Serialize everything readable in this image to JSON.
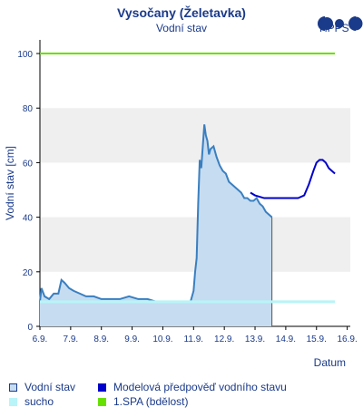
{
  "header": {
    "title": "Vysočany (Želetavka)",
    "subtitle": "Vodní stav",
    "logo_text": "HPPS"
  },
  "colors": {
    "accent": "#1a3a8a",
    "observed_fill": "#c6dcf0",
    "observed_line": "#3a7fc0",
    "forecast": "#0000cc",
    "drought": "#b8f4f8",
    "spa": "#66e000",
    "band": "#efefef"
  },
  "legend": {
    "items": [
      {
        "label": "Vodní stav",
        "icon": "filled-square-icon"
      },
      {
        "label": "Modelová předpověď vodního stavu",
        "icon": "blue-square-icon"
      },
      {
        "label": "sucho",
        "icon": "cyan-square-icon"
      },
      {
        "label": "1.SPA (bdělost)",
        "icon": "green-square-icon"
      }
    ]
  },
  "chart_data": {
    "type": "area",
    "title": "Vysočany (Želetavka)",
    "subtitle": "Vodní stav",
    "xlabel": "Datum",
    "ylabel": "Vodní stav [cm]",
    "x_ticks": [
      "6.9.",
      "7.9.",
      "8.9.",
      "9.9.",
      "10.9.",
      "11.9.",
      "12.9.",
      "13.9.",
      "14.9.",
      "15.9.",
      "16.9."
    ],
    "xlim": [
      0,
      10.1
    ],
    "x_unit": "days since 6.9.",
    "ylim": [
      0,
      105
    ],
    "y_ticks": [
      0,
      20,
      40,
      60,
      80,
      100
    ],
    "grid": "horizontal bands",
    "series": [
      {
        "name": "Vodní stav",
        "type": "area",
        "points": [
          [
            0,
            9
          ],
          [
            0.05,
            14
          ],
          [
            0.15,
            11
          ],
          [
            0.3,
            10
          ],
          [
            0.45,
            12
          ],
          [
            0.6,
            12
          ],
          [
            0.7,
            17
          ],
          [
            0.8,
            16
          ],
          [
            0.95,
            14
          ],
          [
            1.1,
            13
          ],
          [
            1.3,
            12
          ],
          [
            1.5,
            11
          ],
          [
            1.75,
            11
          ],
          [
            2.0,
            10
          ],
          [
            2.3,
            10
          ],
          [
            2.6,
            10
          ],
          [
            2.9,
            11
          ],
          [
            3.2,
            10
          ],
          [
            3.5,
            10
          ],
          [
            3.8,
            9
          ],
          [
            4.1,
            9
          ],
          [
            4.4,
            9
          ],
          [
            4.7,
            9
          ],
          [
            4.9,
            9
          ],
          [
            4.95,
            11
          ],
          [
            5.0,
            13
          ],
          [
            5.05,
            20
          ],
          [
            5.1,
            25
          ],
          [
            5.15,
            45
          ],
          [
            5.2,
            61
          ],
          [
            5.25,
            58
          ],
          [
            5.3,
            66
          ],
          [
            5.35,
            74
          ],
          [
            5.4,
            70
          ],
          [
            5.45,
            68
          ],
          [
            5.5,
            63
          ],
          [
            5.55,
            65
          ],
          [
            5.65,
            66
          ],
          [
            5.75,
            62
          ],
          [
            5.85,
            59
          ],
          [
            5.95,
            57
          ],
          [
            6.05,
            56
          ],
          [
            6.15,
            53
          ],
          [
            6.25,
            52
          ],
          [
            6.35,
            51
          ],
          [
            6.45,
            50
          ],
          [
            6.55,
            49
          ],
          [
            6.65,
            47
          ],
          [
            6.75,
            47
          ],
          [
            6.85,
            46
          ],
          [
            6.95,
            46
          ],
          [
            7.05,
            47
          ],
          [
            7.15,
            45
          ],
          [
            7.25,
            44
          ],
          [
            7.35,
            42
          ],
          [
            7.45,
            41
          ],
          [
            7.55,
            40
          ]
        ]
      },
      {
        "name": "Modelová předpověď vodního stavu",
        "type": "line",
        "points": [
          [
            6.85,
            49
          ],
          [
            7.0,
            48
          ],
          [
            7.3,
            47
          ],
          [
            7.6,
            47
          ],
          [
            7.9,
            47
          ],
          [
            8.2,
            47
          ],
          [
            8.4,
            47
          ],
          [
            8.6,
            48
          ],
          [
            8.75,
            52
          ],
          [
            8.9,
            57
          ],
          [
            9.0,
            60
          ],
          [
            9.1,
            61
          ],
          [
            9.2,
            61
          ],
          [
            9.3,
            60
          ],
          [
            9.4,
            58
          ],
          [
            9.5,
            57
          ],
          [
            9.6,
            56
          ]
        ]
      },
      {
        "name": "sucho",
        "type": "threshold",
        "value": 9,
        "x_range": [
          0,
          9.6
        ]
      },
      {
        "name": "1.SPA (bdělost)",
        "type": "threshold",
        "value": 100,
        "x_range": [
          0,
          9.6
        ]
      }
    ]
  }
}
